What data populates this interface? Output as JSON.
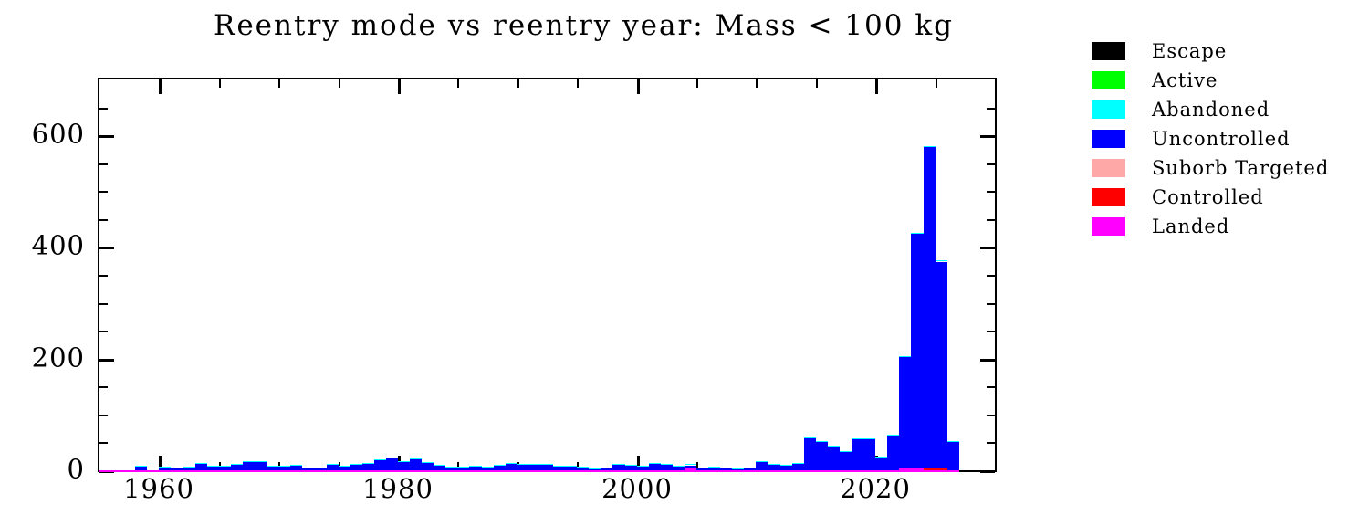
{
  "chart_data": {
    "type": "bar",
    "title": "Reentry mode vs reentry year: Mass < 100 kg",
    "xlabel": "",
    "ylabel": "",
    "xlim": [
      1955,
      2030
    ],
    "ylim": [
      0,
      700
    ],
    "grid": false,
    "bin_width_years": 1,
    "x_major_ticks": [
      1960,
      1980,
      2000,
      2020
    ],
    "x_minor_ticks": [
      1965,
      1970,
      1975,
      1985,
      1990,
      1995,
      2005,
      2010,
      2015,
      2025
    ],
    "y_major_ticks": [
      0,
      200,
      400,
      600
    ],
    "y_minor_ticks": [
      50,
      100,
      150,
      250,
      300,
      350,
      450,
      500,
      550,
      650
    ],
    "legend_position": "right",
    "legend": [
      {
        "label": "Escape",
        "color": "#000000"
      },
      {
        "label": "Active",
        "color": "#00ff00"
      },
      {
        "label": "Abandoned",
        "color": "#00ffff"
      },
      {
        "label": "Uncontrolled",
        "color": "#0000ff"
      },
      {
        "label": "Suborb Targeted",
        "color": "#ffa8a8"
      },
      {
        "label": "Controlled",
        "color": "#ff0000"
      },
      {
        "label": "Landed",
        "color": "#ff00ff"
      }
    ],
    "years": [
      1958,
      1959,
      1960,
      1961,
      1962,
      1963,
      1964,
      1965,
      1966,
      1967,
      1968,
      1969,
      1970,
      1971,
      1972,
      1973,
      1974,
      1975,
      1976,
      1977,
      1978,
      1979,
      1980,
      1981,
      1982,
      1983,
      1984,
      1985,
      1986,
      1987,
      1988,
      1989,
      1990,
      1991,
      1992,
      1993,
      1994,
      1995,
      1996,
      1997,
      1998,
      1999,
      2000,
      2001,
      2002,
      2003,
      2004,
      2005,
      2006,
      2007,
      2008,
      2009,
      2010,
      2011,
      2012,
      2013,
      2014,
      2015,
      2016,
      2017,
      2018,
      2019,
      2020,
      2021,
      2022,
      2023,
      2024,
      2025,
      2026
    ],
    "series": [
      {
        "name": "Uncontrolled",
        "color": "#0000ff",
        "values": [
          7,
          0,
          5,
          3,
          5,
          11,
          7,
          6,
          9,
          14,
          15,
          6,
          7,
          8,
          4,
          4,
          9,
          7,
          10,
          12,
          18,
          21,
          15,
          19,
          13,
          8,
          5,
          5,
          6,
          5,
          8,
          11,
          10,
          10,
          9,
          6,
          7,
          5,
          2,
          4,
          10,
          8,
          6,
          11,
          9,
          6,
          4,
          3,
          5,
          4,
          2,
          3,
          14,
          10,
          8,
          12,
          58,
          50,
          42,
          33,
          55,
          55,
          23,
          62,
          200,
          420,
          575,
          370,
          50
        ]
      },
      {
        "name": "Abandoned",
        "color": "#00ffff",
        "approx_value_per_year": 1,
        "note": "thin cyan sliver visible along bar tops"
      },
      {
        "name": "Landed",
        "color": "#ff00ff",
        "values_by_year": {
          "2004": 5,
          "2022": 3,
          "2023": 3
        }
      },
      {
        "name": "Controlled",
        "color": "#ff0000",
        "values_by_year": {
          "2024": 4,
          "2025": 4
        }
      },
      {
        "name": "Escape",
        "color": "#000000",
        "values_by_year": {}
      },
      {
        "name": "Active",
        "color": "#00ff00",
        "values_by_year": {}
      },
      {
        "name": "Suborb Targeted",
        "color": "#ffa8a8",
        "values_by_year": {}
      }
    ],
    "baseline_stripe": {
      "color": "#ff00ff",
      "x_start": 1955,
      "x_end": 2027
    }
  }
}
